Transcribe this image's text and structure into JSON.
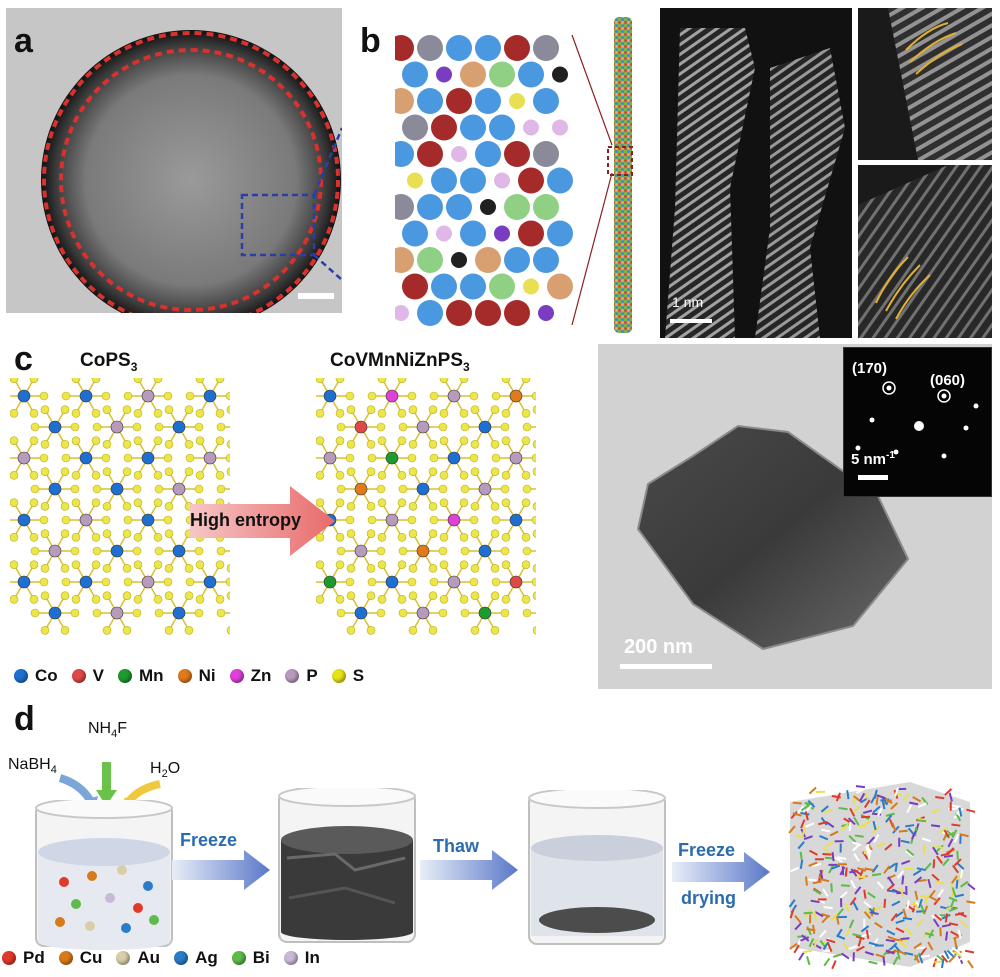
{
  "panel_labels": {
    "a": "a",
    "b": "b",
    "c": "c",
    "d": "d"
  },
  "panel_b": {
    "scale_bar": "1 nm"
  },
  "panel_c": {
    "left_title_base": "CoPS",
    "left_title_sub": "3",
    "right_title_base": "CoVMnNiZnPS",
    "right_title_sub": "3",
    "arrow_label": "High entropy",
    "legend": [
      {
        "label": "Co",
        "color": "#1f6fd1"
      },
      {
        "label": "V",
        "color": "#e04848"
      },
      {
        "label": "Mn",
        "color": "#1f9a2f"
      },
      {
        "label": "Ni",
        "color": "#e07a1c"
      },
      {
        "label": "Zn",
        "color": "#e040d8"
      },
      {
        "label": "P",
        "color": "#b79bbd"
      },
      {
        "label": "S",
        "color": "#e8e21a"
      }
    ],
    "tem_scale": "200 nm",
    "saed_spot1": "(170)",
    "saed_spot2": "(060)",
    "saed_scale": "5 nm",
    "saed_scale_exp": "-1"
  },
  "panel_d": {
    "reagent1_base": "NaBH",
    "reagent1_sub": "4",
    "reagent2_base": "NH",
    "reagent2_sub": "4",
    "reagent2_tail": "F",
    "reagent3_base": "H",
    "reagent3_sub": "2",
    "reagent3_tail": "O",
    "step1": "Freeze",
    "step2": "Thaw",
    "step3a": "Freeze",
    "step3b": "drying",
    "legend": [
      {
        "label": "Pd",
        "color": "#e03a2a"
      },
      {
        "label": "Cu",
        "color": "#d97a1a"
      },
      {
        "label": "Au",
        "color": "#d8cfa8"
      },
      {
        "label": "Ag",
        "color": "#2a7cc8"
      },
      {
        "label": "Bi",
        "color": "#5dbb4a"
      },
      {
        "label": "In",
        "color": "#c9b8d8"
      }
    ]
  }
}
